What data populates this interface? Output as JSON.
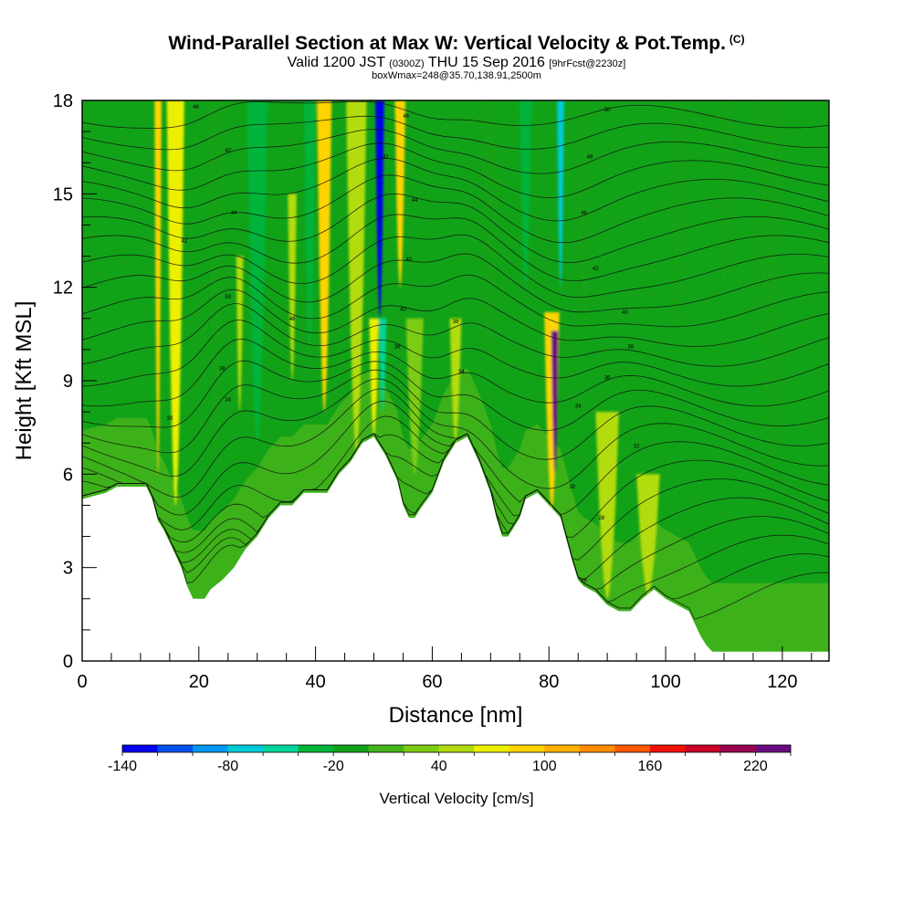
{
  "header": {
    "title": "Wind-Parallel Section at Max W: Vertical Velocity & Pot.Temp.",
    "title_tag": "(C)",
    "valid_prefix": "Valid 1200 JST",
    "valid_utc": "(0300Z)",
    "valid_date": "THU 15 Sep 2016",
    "forecast": "[9hrFcst@2230z]",
    "box_info": "boxWmax=248@35.70,138.91,2500m"
  },
  "chart_data": {
    "type": "heatmap",
    "xlabel": "Distance [nm]",
    "ylabel": "Height [Kft MSL]",
    "xlim": [
      0,
      128
    ],
    "ylim": [
      0,
      18
    ],
    "x_ticks": [
      0,
      20,
      40,
      60,
      80,
      100,
      120
    ],
    "y_ticks": [
      0,
      3,
      6,
      9,
      12,
      15,
      18
    ],
    "colorbar": {
      "title": "Vertical Velocity [cm/s]",
      "min": -140,
      "max": 240,
      "step": 20,
      "labels": [
        -140,
        -80,
        -20,
        40,
        100,
        160,
        220
      ],
      "colors": [
        "#0000ee",
        "#0050ee",
        "#0098f0",
        "#00cbd8",
        "#00d49a",
        "#00b43a",
        "#12a218",
        "#45b41a",
        "#7bcc12",
        "#b2dc10",
        "#ecf000",
        "#ffd400",
        "#ffb000",
        "#ff8c00",
        "#ff5a00",
        "#f01000",
        "#c8002a",
        "#980050",
        "#6a0a80"
      ]
    },
    "terrain_kft": [
      [
        0,
        5.2
      ],
      [
        4,
        5.4
      ],
      [
        6,
        5.6
      ],
      [
        11,
        5.6
      ],
      [
        12,
        5.2
      ],
      [
        13,
        4.5
      ],
      [
        14,
        4.2
      ],
      [
        15,
        3.8
      ],
      [
        16,
        3.4
      ],
      [
        17,
        3.0
      ],
      [
        18,
        2.4
      ],
      [
        19,
        2.0
      ],
      [
        20,
        2.0
      ],
      [
        21,
        2.0
      ],
      [
        22,
        2.3
      ],
      [
        24,
        2.6
      ],
      [
        26,
        3.0
      ],
      [
        28,
        3.6
      ],
      [
        30,
        4.0
      ],
      [
        32,
        4.6
      ],
      [
        34,
        5.0
      ],
      [
        36,
        5.0
      ],
      [
        38,
        5.4
      ],
      [
        40,
        5.4
      ],
      [
        42,
        5.4
      ],
      [
        44,
        6.0
      ],
      [
        46,
        6.4
      ],
      [
        48,
        7.0
      ],
      [
        50,
        7.2
      ],
      [
        52,
        6.6
      ],
      [
        54,
        5.8
      ],
      [
        55,
        5.0
      ],
      [
        56,
        4.6
      ],
      [
        57,
        4.6
      ],
      [
        58,
        4.9
      ],
      [
        60,
        5.4
      ],
      [
        62,
        6.4
      ],
      [
        64,
        7.0
      ],
      [
        66,
        7.2
      ],
      [
        68,
        6.4
      ],
      [
        70,
        5.4
      ],
      [
        71,
        4.6
      ],
      [
        72,
        4.0
      ],
      [
        73,
        4.0
      ],
      [
        75,
        4.6
      ],
      [
        76,
        5.2
      ],
      [
        78,
        5.4
      ],
      [
        80,
        5.0
      ],
      [
        82,
        4.6
      ],
      [
        84,
        3.2
      ],
      [
        85,
        2.6
      ],
      [
        86,
        2.4
      ],
      [
        88,
        2.2
      ],
      [
        89,
        2.0
      ],
      [
        90,
        1.8
      ],
      [
        92,
        1.6
      ],
      [
        94,
        1.6
      ],
      [
        96,
        2.0
      ],
      [
        98,
        2.3
      ],
      [
        100,
        2.0
      ],
      [
        102,
        1.8
      ],
      [
        104,
        1.6
      ],
      [
        105,
        1.2
      ],
      [
        106,
        0.8
      ],
      [
        107,
        0.5
      ],
      [
        108,
        0.3
      ],
      [
        128,
        0.3
      ]
    ],
    "vertical_velocity_features": [
      {
        "x": 13,
        "y_top": 18,
        "y_base": 6.0,
        "w": 80,
        "width_nm": 1.2
      },
      {
        "x": 16,
        "y_top": 18,
        "y_base": 5.0,
        "w": 70,
        "width_nm": 3.0
      },
      {
        "x": 23,
        "y_top": 18,
        "y_base": 6.0,
        "w": -20,
        "width_nm": 3.0
      },
      {
        "x": 27,
        "y_top": 13,
        "y_base": 8.0,
        "w": 40,
        "width_nm": 1.2
      },
      {
        "x": 30,
        "y_top": 18,
        "y_base": 7.0,
        "w": -40,
        "width_nm": 3.5
      },
      {
        "x": 36,
        "y_top": 15,
        "y_base": 9.0,
        "w": 40,
        "width_nm": 1.5
      },
      {
        "x": 39,
        "y_top": 18,
        "y_base": 10.0,
        "w": -40,
        "width_nm": 2.0
      },
      {
        "x": 41.5,
        "y_top": 18,
        "y_base": 8.0,
        "w": 80,
        "width_nm": 2.5
      },
      {
        "x": 47,
        "y_top": 18,
        "y_base": 6.0,
        "w": 50,
        "width_nm": 3.5
      },
      {
        "x": 51,
        "y_top": 18,
        "y_base": 11.0,
        "w": -140,
        "width_nm": 1.5
      },
      {
        "x": 51.5,
        "y_top": 11,
        "y_base": 8.0,
        "w": -60,
        "width_nm": 1.3
      },
      {
        "x": 50,
        "y_top": 11,
        "y_base": 7.0,
        "w": 60,
        "width_nm": 1.6
      },
      {
        "x": 54.5,
        "y_top": 18,
        "y_base": 12.0,
        "w": 90,
        "width_nm": 1.8
      },
      {
        "x": 57,
        "y_top": 11,
        "y_base": 6.0,
        "w": 30,
        "width_nm": 3.0
      },
      {
        "x": 64,
        "y_top": 11,
        "y_base": 7.0,
        "w": 40,
        "width_nm": 2.0
      },
      {
        "x": 70,
        "y_top": 18,
        "y_base": 9.0,
        "w": -20,
        "width_nm": 3.0
      },
      {
        "x": 76,
        "y_top": 18,
        "y_base": 12.0,
        "w": -40,
        "width_nm": 2.0
      },
      {
        "x": 80.5,
        "y_top": 11.2,
        "y_base": 4.0,
        "w": 90,
        "width_nm": 2.6
      },
      {
        "x": 81,
        "y_top": 10.6,
        "y_base": 6.0,
        "w": 240,
        "width_nm": 1.2
      },
      {
        "x": 82,
        "y_top": 18,
        "y_base": 12.0,
        "w": -80,
        "width_nm": 1.2
      },
      {
        "x": 86,
        "y_top": 18,
        "y_base": 10.0,
        "w": -20,
        "width_nm": 3.0
      },
      {
        "x": 90,
        "y_top": 8,
        "y_base": 2.0,
        "w": 40,
        "width_nm": 4.0
      },
      {
        "x": 97,
        "y_top": 6,
        "y_base": 2.0,
        "w": 40,
        "width_nm": 4.0
      },
      {
        "x": 102,
        "y_top": 18,
        "y_base": 10.0,
        "w": -20,
        "width_nm": 2.5
      },
      {
        "x": 110,
        "y_top": 18,
        "y_base": 12.0,
        "w": -20,
        "width_nm": 3.0
      },
      {
        "x": 118,
        "y_top": 18,
        "y_base": 6.0,
        "w": -20,
        "width_nm": 4.0
      }
    ],
    "potential_temperature_contour_labels": [
      {
        "x": 19.5,
        "y": 17.8,
        "label": "46"
      },
      {
        "x": 25,
        "y": 16.4,
        "label": "42"
      },
      {
        "x": 26,
        "y": 14.4,
        "label": "44"
      },
      {
        "x": 17.5,
        "y": 13.5,
        "label": "42"
      },
      {
        "x": 25,
        "y": 11.7,
        "label": "50"
      },
      {
        "x": 36,
        "y": 11.0,
        "label": "48"
      },
      {
        "x": 24,
        "y": 9.4,
        "label": "38"
      },
      {
        "x": 25,
        "y": 8.4,
        "label": "34"
      },
      {
        "x": 15,
        "y": 7.8,
        "label": "30"
      },
      {
        "x": 55.5,
        "y": 17.5,
        "label": "46"
      },
      {
        "x": 52,
        "y": 16.2,
        "label": "42"
      },
      {
        "x": 57,
        "y": 14.8,
        "label": "44"
      },
      {
        "x": 56,
        "y": 12.9,
        "label": "40"
      },
      {
        "x": 55,
        "y": 11.3,
        "label": "40"
      },
      {
        "x": 54,
        "y": 10.1,
        "label": "36"
      },
      {
        "x": 64,
        "y": 10.9,
        "label": "38"
      },
      {
        "x": 65,
        "y": 9.3,
        "label": "34"
      },
      {
        "x": 90,
        "y": 17.7,
        "label": "50"
      },
      {
        "x": 87,
        "y": 16.2,
        "label": "48"
      },
      {
        "x": 86,
        "y": 14.4,
        "label": "46"
      },
      {
        "x": 88,
        "y": 12.6,
        "label": "42"
      },
      {
        "x": 93,
        "y": 11.2,
        "label": "40"
      },
      {
        "x": 94,
        "y": 10.1,
        "label": "38"
      },
      {
        "x": 90,
        "y": 9.1,
        "label": "36"
      },
      {
        "x": 85,
        "y": 8.2,
        "label": "34"
      },
      {
        "x": 95,
        "y": 6.9,
        "label": "32"
      },
      {
        "x": 84,
        "y": 5.6,
        "label": "30"
      },
      {
        "x": 89,
        "y": 4.6,
        "label": "28"
      },
      {
        "x": 86,
        "y": 2.6,
        "label": "26"
      }
    ]
  }
}
